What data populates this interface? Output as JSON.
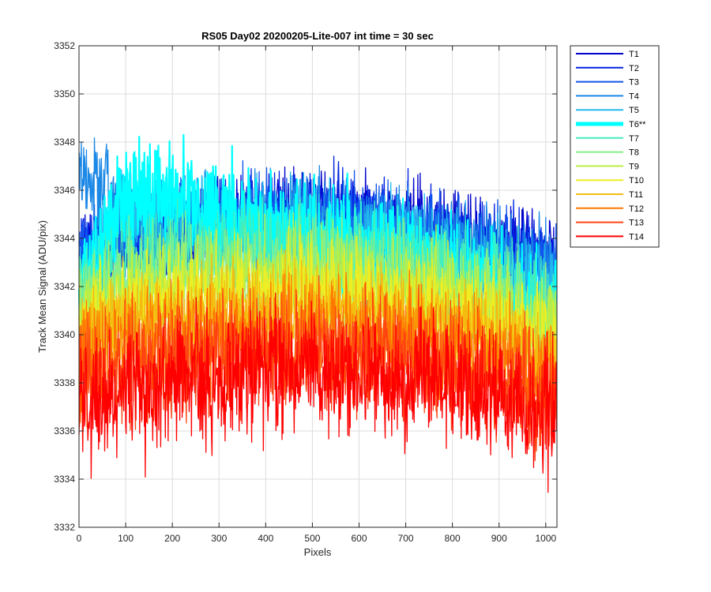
{
  "chart_data": {
    "type": "line",
    "title": "RS05 Day02 20200205-Lite-007 int time = 30 sec",
    "xlabel": "Pixels",
    "ylabel": "Track Mean Signal (ADU/pix)",
    "xlim": [
      0,
      1024
    ],
    "ylim": [
      3332,
      3352
    ],
    "xticks": [
      0,
      100,
      200,
      300,
      400,
      500,
      600,
      700,
      800,
      900,
      1000
    ],
    "yticks": [
      3332,
      3334,
      3336,
      3338,
      3340,
      3342,
      3344,
      3346,
      3348,
      3350,
      3352
    ],
    "grid": true,
    "legend_position": "outside-top-right",
    "n_points": 1024,
    "highlighted_series": "T6**",
    "series": [
      {
        "name": "T1",
        "color": "#0000cc",
        "mean_profile": {
          "x": [
            0,
            100,
            300,
            500,
            700,
            900,
            1023
          ],
          "y": [
            3343.0,
            3343.8,
            3344.6,
            3345.0,
            3344.6,
            3343.8,
            3343.0
          ]
        },
        "noise_amplitude": 0.9
      },
      {
        "name": "T2",
        "color": "#0022e0",
        "mean_profile": {
          "x": [
            0,
            100,
            300,
            500,
            700,
            900,
            1023
          ],
          "y": [
            3343.2,
            3344.0,
            3344.6,
            3344.9,
            3344.5,
            3343.6,
            3342.9
          ]
        },
        "noise_amplitude": 0.9
      },
      {
        "name": "T3",
        "color": "#1155ee",
        "mean_profile": {
          "x": [
            0,
            100,
            300,
            500,
            700,
            900,
            1023
          ],
          "y": [
            3343.4,
            3344.4,
            3344.7,
            3344.8,
            3344.3,
            3343.4,
            3342.7
          ]
        },
        "noise_amplitude": 0.9
      },
      {
        "name": "T4",
        "color": "#1a88e6",
        "mean_profile": {
          "x": [
            0,
            30,
            100,
            300,
            500,
            700,
            900,
            1023
          ],
          "y": [
            3346.6,
            3346.8,
            3344.6,
            3344.4,
            3344.5,
            3344.0,
            3343.1,
            3342.3
          ]
        },
        "noise_amplitude": 1.0
      },
      {
        "name": "T5",
        "color": "#22bbee",
        "mean_profile": {
          "x": [
            0,
            100,
            300,
            500,
            700,
            900,
            1023
          ],
          "y": [
            3342.2,
            3345.2,
            3344.5,
            3344.1,
            3343.6,
            3342.7,
            3341.8
          ]
        },
        "noise_amplitude": 1.0
      },
      {
        "name": "T6**",
        "color": "#00ffff",
        "mean_profile": {
          "x": [
            0,
            100,
            200,
            300,
            500,
            700,
            900,
            1023
          ],
          "y": [
            3341.8,
            3345.8,
            3345.9,
            3344.8,
            3343.9,
            3343.2,
            3342.1,
            3340.2
          ]
        },
        "noise_amplitude": 1.1,
        "highlighted": true
      },
      {
        "name": "T7",
        "color": "#44eebb",
        "mean_profile": {
          "x": [
            0,
            100,
            300,
            500,
            700,
            900,
            1023
          ],
          "y": [
            3341.5,
            3343.0,
            3343.6,
            3343.6,
            3343.0,
            3342.0,
            3341.0
          ]
        },
        "noise_amplitude": 1.0
      },
      {
        "name": "T8",
        "color": "#88ee88",
        "mean_profile": {
          "x": [
            0,
            100,
            300,
            500,
            700,
            900,
            1023
          ],
          "y": [
            3341.2,
            3342.4,
            3342.9,
            3343.0,
            3342.5,
            3341.5,
            3340.6
          ]
        },
        "noise_amplitude": 1.0
      },
      {
        "name": "T9",
        "color": "#bbee44",
        "mean_profile": {
          "x": [
            0,
            100,
            300,
            500,
            700,
            900,
            1023
          ],
          "y": [
            3340.8,
            3341.8,
            3342.2,
            3342.4,
            3341.9,
            3341.0,
            3340.2
          ]
        },
        "noise_amplitude": 1.0
      },
      {
        "name": "T10",
        "color": "#eeee22",
        "mean_profile": {
          "x": [
            0,
            100,
            300,
            500,
            700,
            900,
            1023
          ],
          "y": [
            3340.3,
            3341.2,
            3341.6,
            3341.8,
            3341.3,
            3340.5,
            3339.7
          ]
        },
        "noise_amplitude": 1.0
      },
      {
        "name": "T11",
        "color": "#f5bb11",
        "mean_profile": {
          "x": [
            0,
            100,
            300,
            500,
            700,
            900,
            1023
          ],
          "y": [
            3339.6,
            3340.5,
            3340.8,
            3341.0,
            3340.6,
            3339.8,
            3339.0
          ]
        },
        "noise_amplitude": 1.0
      },
      {
        "name": "T12",
        "color": "#ff7700",
        "mean_profile": {
          "x": [
            0,
            100,
            300,
            500,
            700,
            900,
            1023
          ],
          "y": [
            3338.8,
            3339.6,
            3340.0,
            3340.2,
            3339.8,
            3339.0,
            3338.2
          ]
        },
        "noise_amplitude": 1.1
      },
      {
        "name": "T13",
        "color": "#ff4411",
        "mean_profile": {
          "x": [
            0,
            100,
            300,
            500,
            700,
            900,
            1023
          ],
          "y": [
            3337.9,
            3338.6,
            3339.1,
            3339.4,
            3338.9,
            3338.1,
            3337.3
          ]
        },
        "noise_amplitude": 1.2
      },
      {
        "name": "T14",
        "color": "#ff0000",
        "mean_profile": {
          "x": [
            0,
            100,
            300,
            500,
            700,
            900,
            1023
          ],
          "y": [
            3337.2,
            3337.6,
            3338.2,
            3338.7,
            3338.2,
            3337.4,
            3336.6
          ]
        },
        "noise_amplitude": 1.3
      }
    ]
  }
}
